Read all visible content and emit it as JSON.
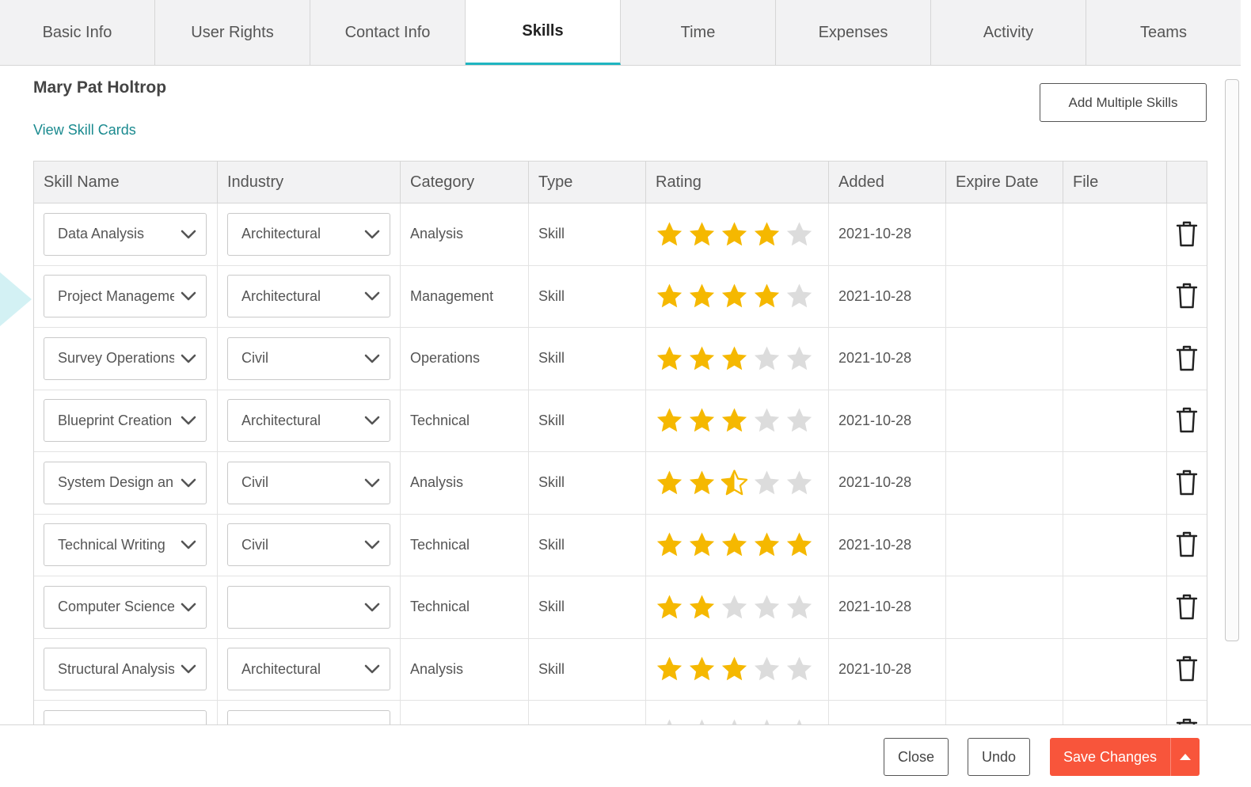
{
  "tabs": [
    {
      "label": "Basic Info",
      "active": false
    },
    {
      "label": "User Rights",
      "active": false
    },
    {
      "label": "Contact Info",
      "active": false
    },
    {
      "label": "Skills",
      "active": true
    },
    {
      "label": "Time",
      "active": false
    },
    {
      "label": "Expenses",
      "active": false
    },
    {
      "label": "Activity",
      "active": false
    },
    {
      "label": "Teams",
      "active": false
    }
  ],
  "person_name": "Mary Pat Holtrop",
  "view_skill_cards": "View Skill Cards",
  "add_multiple_skills": "Add Multiple Skills",
  "table": {
    "headers": [
      "Skill Name",
      "Industry",
      "Category",
      "Type",
      "Rating",
      "Added",
      "Expire Date",
      "File",
      ""
    ],
    "rows": [
      {
        "skill": "Data Analysis",
        "industry": "Architectural",
        "category": "Analysis",
        "type": "Skill",
        "rating": 4,
        "added": "2021-10-28",
        "expire": "",
        "file": ""
      },
      {
        "skill": "Project Management",
        "industry": "Architectural",
        "category": "Management",
        "type": "Skill",
        "rating": 4,
        "added": "2021-10-28",
        "expire": "",
        "file": ""
      },
      {
        "skill": "Survey Operations",
        "industry": "Civil",
        "category": "Operations",
        "type": "Skill",
        "rating": 3,
        "added": "2021-10-28",
        "expire": "",
        "file": ""
      },
      {
        "skill": "Blueprint Creation",
        "industry": "Architectural",
        "category": "Technical",
        "type": "Skill",
        "rating": 3,
        "added": "2021-10-28",
        "expire": "",
        "file": ""
      },
      {
        "skill": "System Design and",
        "industry": "Civil",
        "category": "Analysis",
        "type": "Skill",
        "rating": 2.5,
        "added": "2021-10-28",
        "expire": "",
        "file": ""
      },
      {
        "skill": "Technical Writing",
        "industry": "Civil",
        "category": "Technical",
        "type": "Skill",
        "rating": 5,
        "added": "2021-10-28",
        "expire": "",
        "file": ""
      },
      {
        "skill": "Computer Science",
        "industry": "",
        "category": "Technical",
        "type": "Skill",
        "rating": 2,
        "added": "2021-10-28",
        "expire": "",
        "file": ""
      },
      {
        "skill": "Structural Analysis",
        "industry": "Architectural",
        "category": "Analysis",
        "type": "Skill",
        "rating": 3,
        "added": "2021-10-28",
        "expire": "",
        "file": ""
      },
      {
        "skill": "",
        "industry": "",
        "category": "",
        "type": "",
        "rating": 0,
        "added": "",
        "expire": "",
        "file": ""
      }
    ]
  },
  "footer": {
    "close": "Close",
    "undo": "Undo",
    "save": "Save Changes"
  },
  "colors": {
    "accent": "#1fb5c1",
    "link": "#1a8a8f",
    "star_on": "#f5b800",
    "star_off": "#dcdcdc",
    "save": "#f8553b"
  },
  "icons": {
    "dropdown": "chevron-down-icon",
    "rating": "star-icon",
    "delete": "trash-icon",
    "save_menu": "caret-up-icon"
  }
}
